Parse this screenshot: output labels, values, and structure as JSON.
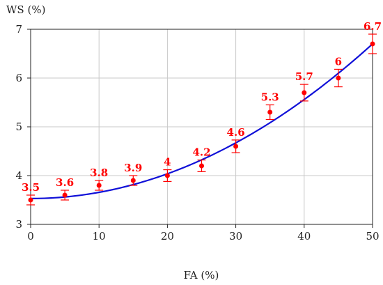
{
  "chart_data": {
    "type": "scatter",
    "xlabel": "FA (%)",
    "ylabel": "WS (%)",
    "xlim": [
      0,
      50
    ],
    "ylim": [
      3,
      7
    ],
    "xticks": [
      0,
      10,
      20,
      30,
      40,
      50
    ],
    "yticks": [
      3,
      4,
      5,
      6,
      7
    ],
    "grid": true,
    "series": [
      {
        "x": [
          0,
          5,
          10,
          15,
          20,
          25,
          30,
          35,
          40,
          45,
          50
        ],
        "y": [
          3.5,
          3.6,
          3.8,
          3.9,
          4.0,
          4.2,
          4.6,
          5.3,
          5.7,
          6.0,
          6.7
        ],
        "labels": [
          "3.5",
          "3.6",
          "3.8",
          "3.9",
          "4",
          "4.2",
          "4.6",
          "5.3",
          "5.7",
          "6",
          "6.7"
        ],
        "error": [
          0.1,
          0.1,
          0.1,
          0.1,
          0.12,
          0.12,
          0.13,
          0.15,
          0.17,
          0.18,
          0.2
        ],
        "color": "#ff0000"
      }
    ],
    "fit": {
      "type": "polynomial",
      "coefficients": [
        3.53,
        0.0,
        0.001268
      ],
      "color": "#1010d8"
    }
  }
}
